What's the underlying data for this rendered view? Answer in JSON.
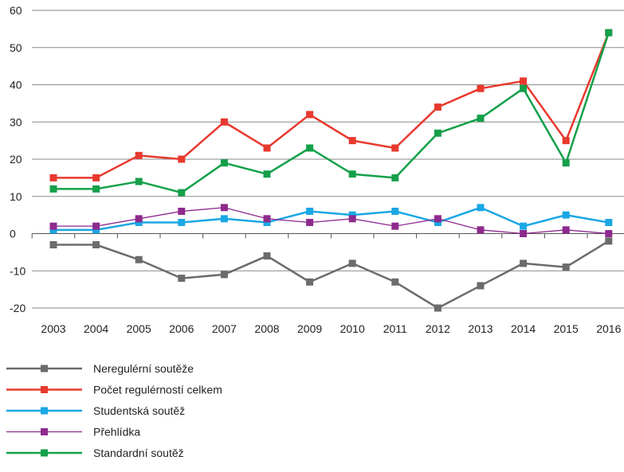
{
  "chart_data": {
    "type": "line",
    "title": "",
    "xlabel": "",
    "ylabel": "",
    "ylim": [
      -20,
      60
    ],
    "yticks": [
      60,
      50,
      40,
      30,
      20,
      10,
      0,
      -10,
      -20
    ],
    "grid": true,
    "legend_position": "bottom",
    "categories": [
      "2003",
      "2004",
      "2005",
      "2006",
      "2007",
      "2008",
      "2009",
      "2010",
      "2011",
      "2012",
      "2013",
      "2014",
      "2015",
      "2016"
    ],
    "series": [
      {
        "name": "Neregulérní soutěže",
        "color": "#6b6b6b",
        "width": 2.5,
        "values": [
          -3,
          -3,
          -7,
          -12,
          -11,
          -6,
          -13,
          -8,
          -13,
          -20,
          -14,
          -8,
          -9,
          -2
        ]
      },
      {
        "name": "Počet regulérností celkem",
        "color": "#e8392e",
        "width": 2.5,
        "values": [
          15,
          15,
          21,
          20,
          30,
          23,
          32,
          25,
          23,
          34,
          39,
          41,
          25,
          54
        ]
      },
      {
        "name": "Studentská soutěž",
        "color": "#1aa7e4",
        "width": 2.5,
        "values": [
          1,
          1,
          3,
          3,
          4,
          3,
          6,
          5,
          6,
          3,
          7,
          2,
          5,
          3
        ]
      },
      {
        "name": "Přehlídka",
        "color": "#8e2a8e",
        "width": 1.3,
        "values": [
          2,
          2,
          4,
          6,
          7,
          4,
          3,
          4,
          2,
          4,
          1,
          0,
          1,
          0
        ]
      },
      {
        "name": "Standardní soutěž",
        "color": "#14a04a",
        "width": 2.5,
        "values": [
          12,
          12,
          14,
          11,
          19,
          16,
          23,
          16,
          15,
          27,
          31,
          39,
          19,
          54
        ]
      }
    ]
  }
}
